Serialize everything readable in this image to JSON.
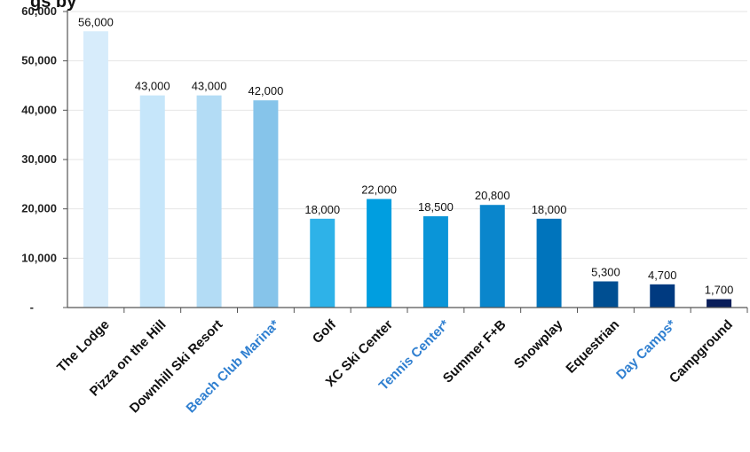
{
  "chart_data": {
    "type": "bar",
    "title": "",
    "xlabel": "",
    "ylabel": "",
    "ylim": [
      0,
      60000
    ],
    "yticks": [
      "-",
      "10,000",
      "20,000",
      "30,000",
      "40,000",
      "50,000",
      "60,000"
    ],
    "grid": true,
    "categories": [
      "The Lodge",
      "Pizza on the Hill",
      "Downhill Ski Resort",
      "Beach Club Marina*",
      "Golf",
      "XC Ski Center",
      "Tennis Center*",
      "Summer F+B",
      "Snowplay",
      "Equestrian",
      "Day Camps*",
      "Campground"
    ],
    "values": [
      56000,
      43000,
      43000,
      42000,
      18000,
      22000,
      18500,
      20800,
      18000,
      5300,
      4700,
      1700
    ],
    "data_labels": [
      "56,000",
      "43,000",
      "43,000",
      "42,000",
      "18,000",
      "22,000",
      "18,500",
      "20,800",
      "18,000",
      "5,300",
      "4,700",
      "1,700"
    ],
    "bar_colors": [
      "#d7ecfb",
      "#c6e6fa",
      "#b3dcf5",
      "#86c4ea",
      "#2eb2e8",
      "#009ee0",
      "#0a95d8",
      "#0a86cc",
      "#0074bc",
      "#004f92",
      "#003a80",
      "#0a1e5a"
    ],
    "highlighted_categories": [
      "Beach Club Marina*",
      "Tennis Center*",
      "Day Camps*"
    ],
    "label_color": "#111111",
    "highlight_label_color": "#2f7fd0"
  }
}
